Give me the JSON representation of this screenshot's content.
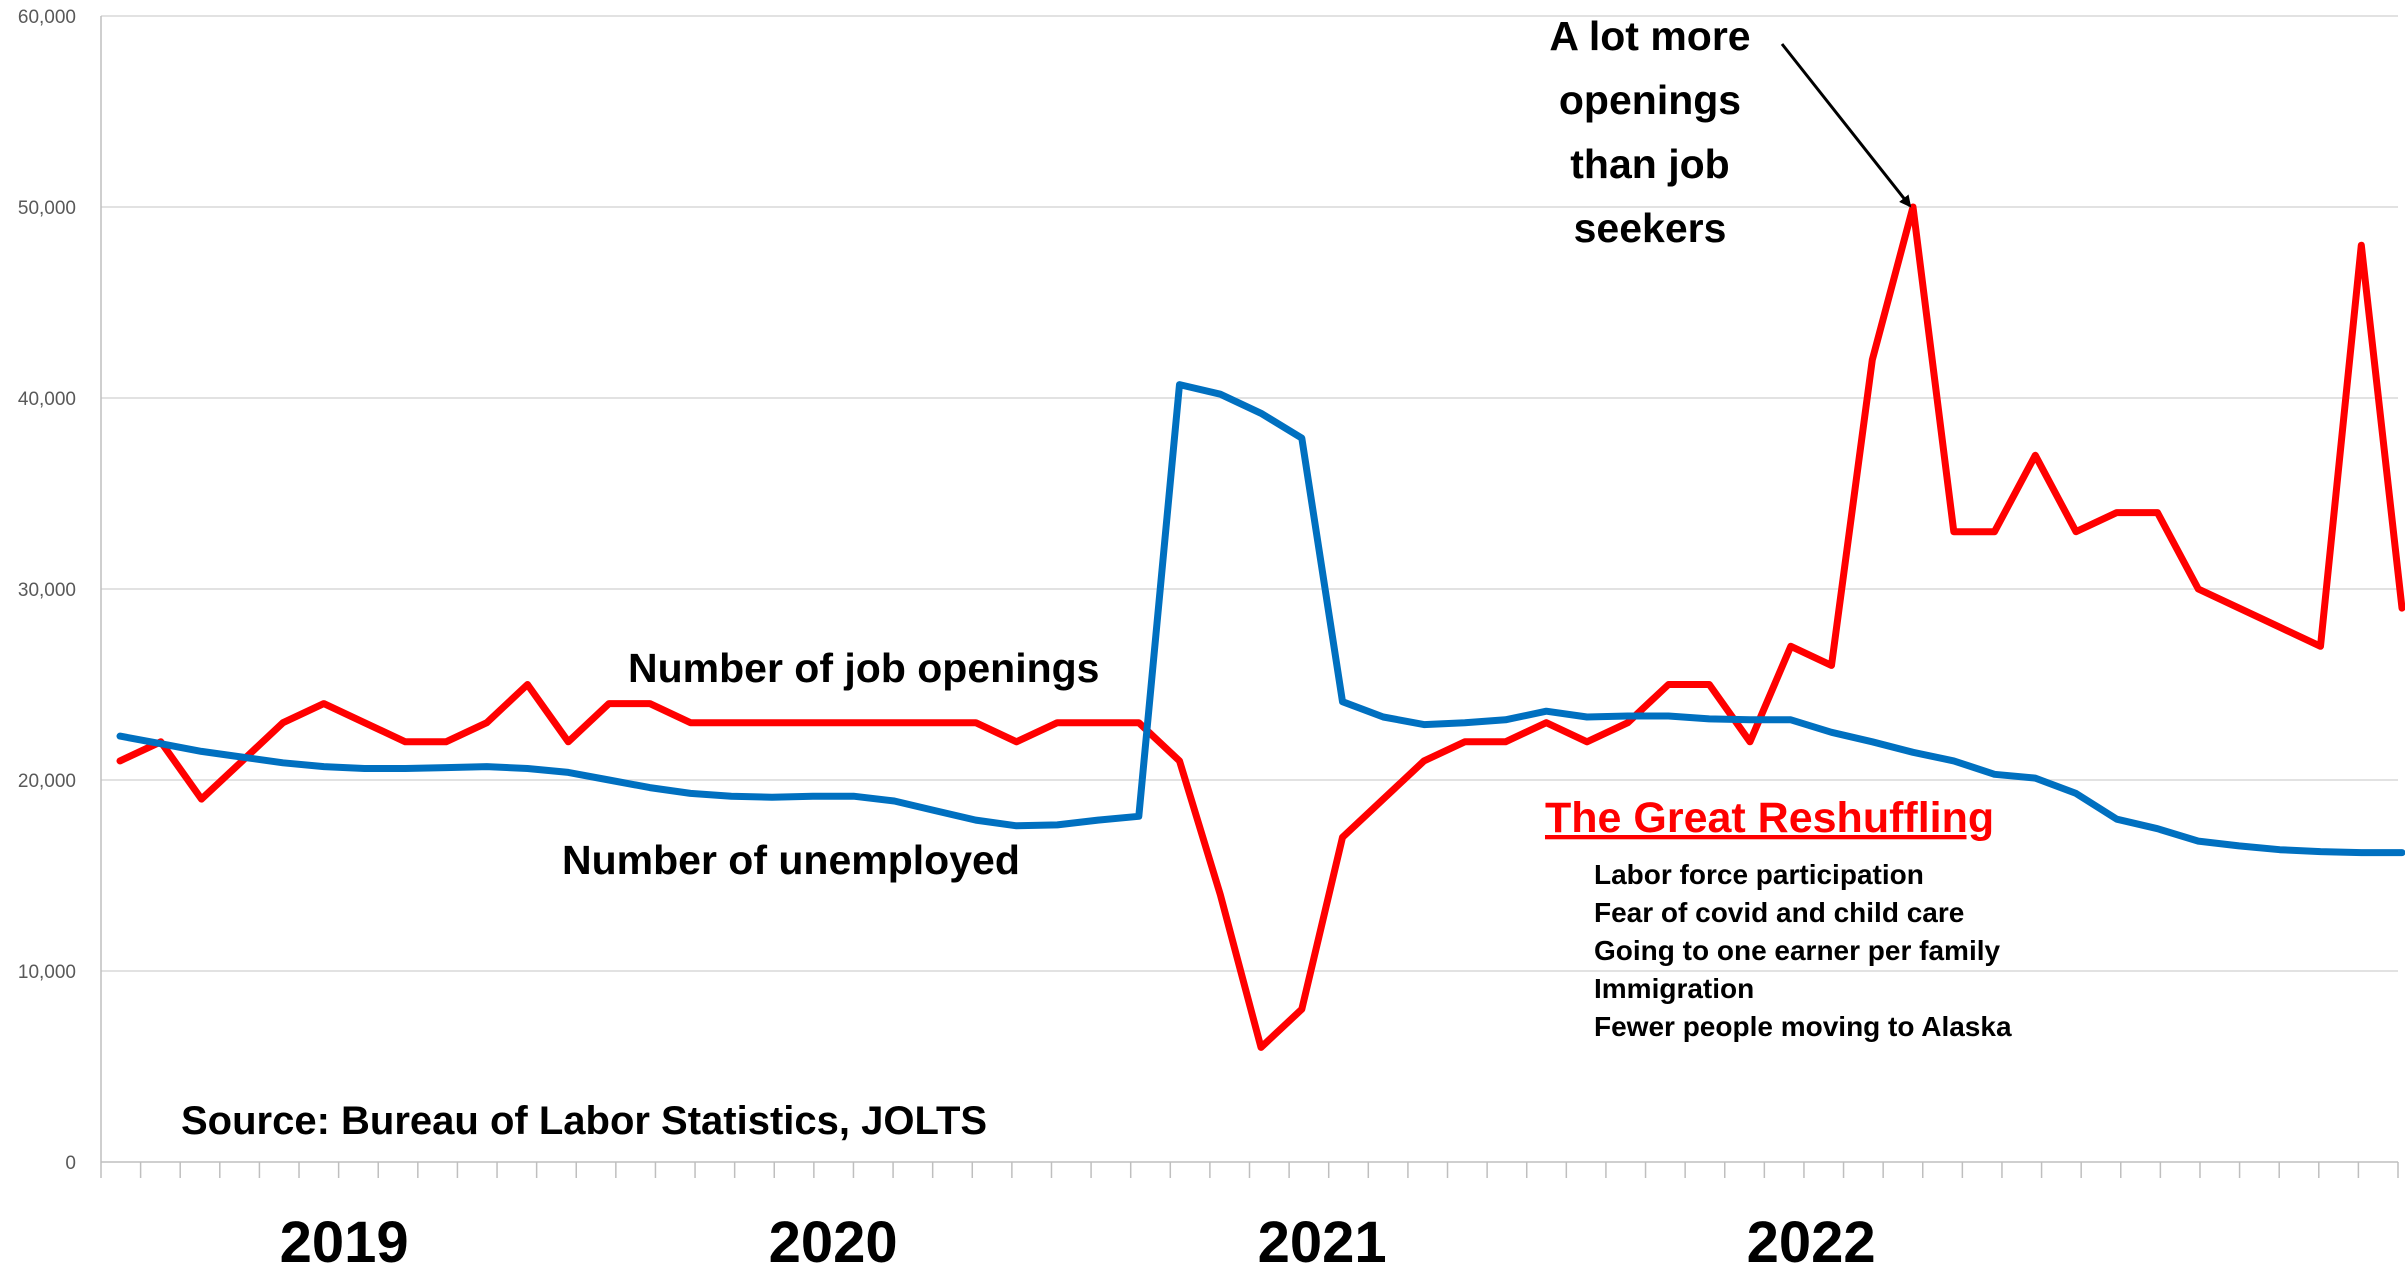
{
  "chart_data": {
    "type": "line",
    "ylim": [
      0,
      60000
    ],
    "yticks": [
      "0",
      "10,000",
      "20,000",
      "30,000",
      "40,000",
      "50,000",
      "60,000"
    ],
    "year_labels": [
      "2019",
      "2020",
      "2021",
      "2022"
    ],
    "grid": true,
    "series": [
      {
        "name": "Number of job openings",
        "color": "#ff0000",
        "values": [
          21000,
          22000,
          19000,
          21000,
          23000,
          24000,
          23000,
          22000,
          22000,
          23000,
          25000,
          22000,
          24000,
          24000,
          23000,
          23000,
          23000,
          23000,
          23000,
          23000,
          23000,
          23000,
          22000,
          23000,
          23000,
          23000,
          21000,
          14000,
          6000,
          8000,
          17000,
          19000,
          21000,
          22000,
          22000,
          23000,
          22000,
          23000,
          25000,
          25000,
          22000,
          27000,
          26000,
          42000,
          50000,
          33000,
          33000,
          37000,
          33000,
          34000,
          34000,
          30000,
          29000,
          28000,
          27000,
          48000,
          29000
        ]
      },
      {
        "name": "Number of unemployed",
        "color": "#0070c0",
        "values": [
          22300,
          21900,
          21500,
          21200,
          20900,
          20700,
          20600,
          20600,
          20650,
          20700,
          20600,
          20400,
          20000,
          19600,
          19300,
          19150,
          19100,
          19150,
          19150,
          18900,
          18400,
          17900,
          17600,
          17650,
          17900,
          18100,
          40700,
          40200,
          39200,
          37900,
          24100,
          23300,
          22900,
          23000,
          23150,
          23600,
          23300,
          23350,
          23350,
          23200,
          23150,
          23150,
          22500,
          22000,
          21450,
          21000,
          20300,
          20100,
          19300,
          17950,
          17450,
          16800,
          16550,
          16350,
          16250,
          16200,
          16200
        ]
      }
    ],
    "annotations": {
      "peak_note": [
        "A lot more",
        "openings",
        "than job",
        "seekers"
      ],
      "source": "Source: Bureau of Labor Statistics, JOLTS"
    },
    "great_reshuffling": {
      "title": "The Great Reshuffling",
      "items": [
        "Labor force participation",
        "Fear of covid and child care",
        "Going to one earner per family",
        "Immigration",
        "Fewer people moving to Alaska"
      ]
    }
  }
}
